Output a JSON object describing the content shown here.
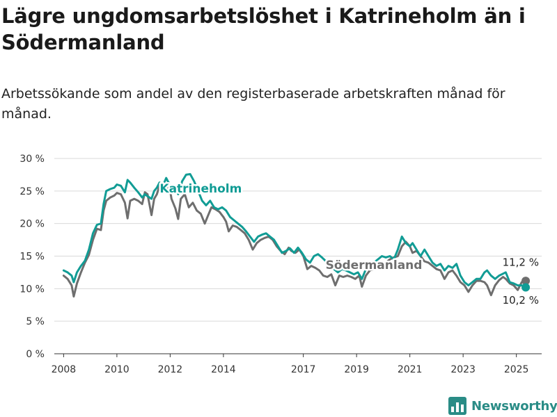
{
  "title": "Lägre ungdomsarbetslöshet i Katrineholm än i Södermanland",
  "subtitle": "Arbetssökande som andel av den registerbaserade arbetskraften månad för månad.",
  "brand": {
    "name": "Newsworthy",
    "icon": "bar-chart-logo-icon"
  },
  "chart_data": {
    "type": "line",
    "title": "Lägre ungdomsarbetslöshet i Katrineholm än i Södermanland",
    "xlabel": "",
    "ylabel": "",
    "ylim": [
      0,
      30
    ],
    "y_ticks": [
      {
        "value": 0,
        "label": "0 %"
      },
      {
        "value": 5,
        "label": "5 %"
      },
      {
        "value": 10,
        "label": "10 %"
      },
      {
        "value": 15,
        "label": "15 %"
      },
      {
        "value": 20,
        "label": "20 %"
      },
      {
        "value": 25,
        "label": "25 %"
      },
      {
        "value": 30,
        "label": "30 %"
      }
    ],
    "x_ticks": [
      {
        "value": 2008,
        "label": "2008"
      },
      {
        "value": 2010,
        "label": "2010"
      },
      {
        "value": 2012,
        "label": "2012"
      },
      {
        "value": 2014,
        "label": "2014"
      },
      {
        "value": 2017,
        "label": "2017"
      },
      {
        "value": 2019,
        "label": "2019"
      },
      {
        "value": 2021,
        "label": "2021"
      },
      {
        "value": 2023,
        "label": "2023"
      },
      {
        "value": 2025,
        "label": "2025"
      }
    ],
    "grid": true,
    "series": [
      {
        "name": "Södermanland",
        "color": "#6e6e6e",
        "last_value_label": "11,2 %",
        "points": [
          [
            2008.0,
            12.0
          ],
          [
            2008.15,
            11.5
          ],
          [
            2008.3,
            10.5
          ],
          [
            2008.38,
            8.8
          ],
          [
            2008.5,
            10.8
          ],
          [
            2008.65,
            12.5
          ],
          [
            2008.8,
            14.0
          ],
          [
            2008.95,
            15.2
          ],
          [
            2009.1,
            17.5
          ],
          [
            2009.25,
            19.2
          ],
          [
            2009.4,
            19.0
          ],
          [
            2009.5,
            22.0
          ],
          [
            2009.6,
            23.5
          ],
          [
            2009.75,
            24.0
          ],
          [
            2009.9,
            24.3
          ],
          [
            2010.0,
            24.7
          ],
          [
            2010.15,
            24.5
          ],
          [
            2010.3,
            23.2
          ],
          [
            2010.4,
            20.8
          ],
          [
            2010.5,
            23.5
          ],
          [
            2010.65,
            23.8
          ],
          [
            2010.8,
            23.5
          ],
          [
            2010.95,
            23.0
          ],
          [
            2011.05,
            24.8
          ],
          [
            2011.15,
            24.5
          ],
          [
            2011.3,
            21.3
          ],
          [
            2011.4,
            23.8
          ],
          [
            2011.5,
            24.5
          ],
          [
            2011.6,
            25.8
          ],
          [
            2011.75,
            26.2
          ],
          [
            2011.85,
            25.2
          ],
          [
            2011.95,
            26.3
          ],
          [
            2012.05,
            23.8
          ],
          [
            2012.2,
            22.3
          ],
          [
            2012.3,
            20.7
          ],
          [
            2012.4,
            23.8
          ],
          [
            2012.55,
            24.5
          ],
          [
            2012.7,
            22.5
          ],
          [
            2012.85,
            23.2
          ],
          [
            2013.0,
            22.0
          ],
          [
            2013.15,
            21.5
          ],
          [
            2013.3,
            20.0
          ],
          [
            2013.4,
            21.0
          ],
          [
            2013.55,
            22.5
          ],
          [
            2013.7,
            22.2
          ],
          [
            2013.85,
            21.8
          ],
          [
            2014.0,
            21.0
          ],
          [
            2014.1,
            20.3
          ],
          [
            2014.2,
            18.8
          ],
          [
            2014.35,
            19.7
          ],
          [
            2014.5,
            19.5
          ],
          [
            2014.65,
            19.0
          ],
          [
            2014.8,
            18.5
          ],
          [
            2014.95,
            17.5
          ],
          [
            2015.1,
            16.0
          ],
          [
            2015.25,
            17.0
          ],
          [
            2015.4,
            17.5
          ],
          [
            2015.55,
            17.8
          ],
          [
            2015.7,
            18.0
          ],
          [
            2015.85,
            17.5
          ],
          [
            2016.0,
            16.5
          ],
          [
            2016.15,
            15.8
          ],
          [
            2016.3,
            15.3
          ],
          [
            2016.45,
            16.3
          ],
          [
            2016.55,
            15.8
          ],
          [
            2016.7,
            15.5
          ],
          [
            2016.85,
            16.0
          ],
          [
            2017.0,
            15.0
          ],
          [
            2017.15,
            13.0
          ],
          [
            2017.3,
            13.5
          ],
          [
            2017.45,
            13.2
          ],
          [
            2017.6,
            12.8
          ],
          [
            2017.75,
            12.0
          ],
          [
            2017.9,
            11.8
          ],
          [
            2018.05,
            12.2
          ],
          [
            2018.2,
            10.5
          ],
          [
            2018.35,
            12.0
          ],
          [
            2018.5,
            11.8
          ],
          [
            2018.65,
            12.0
          ],
          [
            2018.8,
            11.8
          ],
          [
            2018.95,
            11.5
          ],
          [
            2019.1,
            12.0
          ],
          [
            2019.2,
            10.3
          ],
          [
            2019.35,
            12.0
          ],
          [
            2019.5,
            12.8
          ],
          [
            2019.65,
            13.0
          ],
          [
            2019.8,
            13.5
          ],
          [
            2019.95,
            13.8
          ],
          [
            2020.1,
            14.0
          ],
          [
            2020.25,
            14.5
          ],
          [
            2020.4,
            14.8
          ],
          [
            2020.55,
            15.0
          ],
          [
            2020.7,
            16.5
          ],
          [
            2020.85,
            17.2
          ],
          [
            2021.0,
            16.5
          ],
          [
            2021.1,
            15.5
          ],
          [
            2021.25,
            15.8
          ],
          [
            2021.4,
            15.0
          ],
          [
            2021.55,
            14.2
          ],
          [
            2021.7,
            14.0
          ],
          [
            2021.85,
            13.5
          ],
          [
            2022.0,
            13.0
          ],
          [
            2022.15,
            12.8
          ],
          [
            2022.3,
            11.5
          ],
          [
            2022.45,
            12.5
          ],
          [
            2022.6,
            12.8
          ],
          [
            2022.75,
            12.0
          ],
          [
            2022.9,
            11.0
          ],
          [
            2023.05,
            10.5
          ],
          [
            2023.2,
            9.5
          ],
          [
            2023.35,
            10.5
          ],
          [
            2023.5,
            11.2
          ],
          [
            2023.65,
            11.2
          ],
          [
            2023.8,
            11.0
          ],
          [
            2023.9,
            10.5
          ],
          [
            2024.05,
            9.0
          ],
          [
            2024.2,
            10.5
          ],
          [
            2024.35,
            11.3
          ],
          [
            2024.5,
            11.8
          ],
          [
            2024.6,
            11.5
          ],
          [
            2024.75,
            10.8
          ],
          [
            2024.9,
            10.5
          ],
          [
            2025.05,
            9.8
          ],
          [
            2025.2,
            11.0
          ],
          [
            2025.35,
            11.2
          ]
        ]
      },
      {
        "name": "Katrineholm",
        "color": "#119c95",
        "last_value_label": "10,2 %",
        "points": [
          [
            2008.0,
            12.8
          ],
          [
            2008.15,
            12.5
          ],
          [
            2008.3,
            12.0
          ],
          [
            2008.38,
            11.0
          ],
          [
            2008.5,
            12.5
          ],
          [
            2008.65,
            13.5
          ],
          [
            2008.8,
            14.3
          ],
          [
            2008.95,
            16.0
          ],
          [
            2009.1,
            18.5
          ],
          [
            2009.25,
            19.8
          ],
          [
            2009.4,
            20.0
          ],
          [
            2009.5,
            23.0
          ],
          [
            2009.6,
            25.0
          ],
          [
            2009.75,
            25.3
          ],
          [
            2009.9,
            25.5
          ],
          [
            2010.0,
            26.0
          ],
          [
            2010.15,
            25.8
          ],
          [
            2010.3,
            24.8
          ],
          [
            2010.4,
            26.7
          ],
          [
            2010.5,
            26.3
          ],
          [
            2010.65,
            25.5
          ],
          [
            2010.8,
            24.8
          ],
          [
            2010.95,
            24.0
          ],
          [
            2011.05,
            24.5
          ],
          [
            2011.15,
            24.2
          ],
          [
            2011.3,
            23.8
          ],
          [
            2011.4,
            25.0
          ],
          [
            2011.5,
            25.5
          ],
          [
            2011.6,
            26.3
          ],
          [
            2011.75,
            26.0
          ],
          [
            2011.85,
            27.0
          ],
          [
            2011.95,
            26.2
          ],
          [
            2012.05,
            25.5
          ],
          [
            2012.2,
            25.7
          ],
          [
            2012.3,
            24.5
          ],
          [
            2012.45,
            26.5
          ],
          [
            2012.6,
            27.5
          ],
          [
            2012.75,
            27.6
          ],
          [
            2012.9,
            26.5
          ],
          [
            2013.05,
            25.0
          ],
          [
            2013.2,
            23.5
          ],
          [
            2013.35,
            22.8
          ],
          [
            2013.5,
            23.5
          ],
          [
            2013.65,
            22.5
          ],
          [
            2013.8,
            22.2
          ],
          [
            2013.95,
            22.5
          ],
          [
            2014.1,
            22.0
          ],
          [
            2014.25,
            21.0
          ],
          [
            2014.4,
            20.5
          ],
          [
            2014.55,
            20.0
          ],
          [
            2014.7,
            19.5
          ],
          [
            2014.85,
            18.8
          ],
          [
            2015.0,
            18.0
          ],
          [
            2015.15,
            17.2
          ],
          [
            2015.3,
            18.0
          ],
          [
            2015.45,
            18.3
          ],
          [
            2015.6,
            18.5
          ],
          [
            2015.75,
            18.0
          ],
          [
            2015.9,
            17.5
          ],
          [
            2016.05,
            16.5
          ],
          [
            2016.2,
            15.5
          ],
          [
            2016.35,
            15.8
          ],
          [
            2016.5,
            16.2
          ],
          [
            2016.65,
            15.5
          ],
          [
            2016.8,
            16.3
          ],
          [
            2016.95,
            15.5
          ],
          [
            2017.1,
            14.5
          ],
          [
            2017.25,
            14.0
          ],
          [
            2017.4,
            15.0
          ],
          [
            2017.55,
            15.3
          ],
          [
            2017.7,
            14.8
          ],
          [
            2017.85,
            14.2
          ],
          [
            2018.0,
            14.0
          ],
          [
            2018.15,
            13.0
          ],
          [
            2018.3,
            12.5
          ],
          [
            2018.45,
            13.0
          ],
          [
            2018.6,
            12.8
          ],
          [
            2018.75,
            12.5
          ],
          [
            2018.9,
            12.2
          ],
          [
            2019.05,
            12.5
          ],
          [
            2019.2,
            11.5
          ],
          [
            2019.35,
            13.0
          ],
          [
            2019.5,
            13.5
          ],
          [
            2019.65,
            14.0
          ],
          [
            2019.8,
            14.5
          ],
          [
            2019.95,
            15.0
          ],
          [
            2020.1,
            14.8
          ],
          [
            2020.25,
            15.0
          ],
          [
            2020.4,
            14.5
          ],
          [
            2020.55,
            16.0
          ],
          [
            2020.7,
            18.0
          ],
          [
            2020.85,
            17.0
          ],
          [
            2021.0,
            16.5
          ],
          [
            2021.1,
            17.0
          ],
          [
            2021.25,
            16.0
          ],
          [
            2021.4,
            15.0
          ],
          [
            2021.55,
            16.0
          ],
          [
            2021.7,
            15.0
          ],
          [
            2021.85,
            14.0
          ],
          [
            2022.0,
            13.5
          ],
          [
            2022.15,
            13.8
          ],
          [
            2022.3,
            12.8
          ],
          [
            2022.45,
            13.5
          ],
          [
            2022.6,
            13.2
          ],
          [
            2022.75,
            13.8
          ],
          [
            2022.9,
            12.0
          ],
          [
            2023.05,
            11.0
          ],
          [
            2023.2,
            10.5
          ],
          [
            2023.35,
            11.0
          ],
          [
            2023.5,
            11.5
          ],
          [
            2023.65,
            11.5
          ],
          [
            2023.8,
            12.5
          ],
          [
            2023.9,
            12.8
          ],
          [
            2024.05,
            12.0
          ],
          [
            2024.2,
            11.5
          ],
          [
            2024.35,
            12.0
          ],
          [
            2024.5,
            12.3
          ],
          [
            2024.6,
            12.5
          ],
          [
            2024.75,
            11.0
          ],
          [
            2024.9,
            10.8
          ],
          [
            2025.05,
            10.5
          ],
          [
            2025.2,
            10.5
          ],
          [
            2025.35,
            10.2
          ]
        ]
      }
    ]
  }
}
